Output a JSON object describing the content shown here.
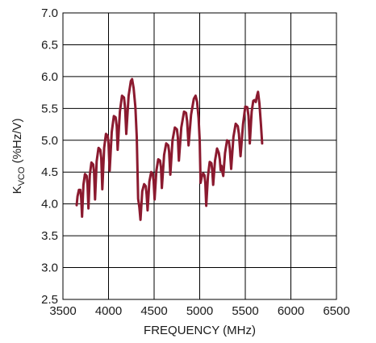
{
  "chart_data": {
    "type": "line",
    "title": "",
    "xlabel": "FREQUENCY (MHz)",
    "ylabel_main": "K",
    "ylabel_sub": "VCO",
    "ylabel_rest": " (%Hz/V)",
    "xlim": [
      3500,
      6500
    ],
    "ylim": [
      2.5,
      7.0
    ],
    "xticks": [
      3500,
      4000,
      4500,
      5000,
      5500,
      6000,
      6500
    ],
    "yticks": [
      2.5,
      3.0,
      3.5,
      4.0,
      4.5,
      5.0,
      5.5,
      6.0,
      6.5,
      7.0
    ],
    "xtick_labels": [
      "3500",
      "4000",
      "4500",
      "5000",
      "5500",
      "6000",
      "6500"
    ],
    "ytick_labels": [
      "2.5",
      "3.0",
      "3.5",
      "4.0",
      "4.5",
      "5.0",
      "5.5",
      "6.0",
      "6.5",
      "7.0"
    ],
    "grid": true,
    "line_color": "#8b1a2f",
    "series": [
      {
        "values": [
          [
            3650,
            3.98
          ],
          [
            3660,
            4.12
          ],
          [
            3675,
            4.22
          ],
          [
            3690,
            4.22
          ],
          [
            3700,
            4.1
          ],
          [
            3710,
            3.8
          ],
          [
            3725,
            4.3
          ],
          [
            3742,
            4.47
          ],
          [
            3760,
            4.44
          ],
          [
            3770,
            4.3
          ],
          [
            3780,
            3.93
          ],
          [
            3795,
            4.45
          ],
          [
            3812,
            4.65
          ],
          [
            3832,
            4.62
          ],
          [
            3842,
            4.5
          ],
          [
            3852,
            4.07
          ],
          [
            3870,
            4.67
          ],
          [
            3890,
            4.88
          ],
          [
            3910,
            4.85
          ],
          [
            3920,
            4.72
          ],
          [
            3932,
            4.23
          ],
          [
            3952,
            4.88
          ],
          [
            3972,
            5.1
          ],
          [
            3990,
            5.07
          ],
          [
            4000,
            4.95
          ],
          [
            4012,
            4.52
          ],
          [
            4035,
            5.13
          ],
          [
            4058,
            5.38
          ],
          [
            4078,
            5.36
          ],
          [
            4090,
            5.22
          ],
          [
            4100,
            4.85
          ],
          [
            4125,
            5.45
          ],
          [
            4148,
            5.7
          ],
          [
            4170,
            5.67
          ],
          [
            4182,
            5.5
          ],
          [
            4195,
            5.1
          ],
          [
            4220,
            5.7
          ],
          [
            4245,
            5.93
          ],
          [
            4258,
            5.96
          ],
          [
            4275,
            5.82
          ],
          [
            4295,
            5.52
          ],
          [
            4310,
            5.05
          ],
          [
            4325,
            4.08
          ],
          [
            4338,
            3.95
          ],
          [
            4350,
            3.75
          ],
          [
            4370,
            4.2
          ],
          [
            4390,
            4.31
          ],
          [
            4408,
            4.28
          ],
          [
            4418,
            4.15
          ],
          [
            4428,
            3.9
          ],
          [
            4448,
            4.35
          ],
          [
            4468,
            4.5
          ],
          [
            4485,
            4.47
          ],
          [
            4495,
            4.36
          ],
          [
            4505,
            4.07
          ],
          [
            4525,
            4.52
          ],
          [
            4545,
            4.7
          ],
          [
            4565,
            4.68
          ],
          [
            4575,
            4.58
          ],
          [
            4585,
            4.25
          ],
          [
            4610,
            4.77
          ],
          [
            4633,
            4.95
          ],
          [
            4655,
            4.92
          ],
          [
            4665,
            4.82
          ],
          [
            4678,
            4.46
          ],
          [
            4702,
            5.0
          ],
          [
            4727,
            5.2
          ],
          [
            4750,
            5.17
          ],
          [
            4760,
            5.05
          ],
          [
            4772,
            4.68
          ],
          [
            4798,
            5.2
          ],
          [
            4828,
            5.45
          ],
          [
            4850,
            5.43
          ],
          [
            4862,
            5.3
          ],
          [
            4878,
            4.92
          ],
          [
            4905,
            5.4
          ],
          [
            4935,
            5.65
          ],
          [
            4955,
            5.7
          ],
          [
            4972,
            5.6
          ],
          [
            4988,
            5.35
          ],
          [
            5000,
            5.0
          ],
          [
            5010,
            4.33
          ],
          [
            5022,
            4.42
          ],
          [
            5038,
            4.48
          ],
          [
            5052,
            4.45
          ],
          [
            5062,
            4.32
          ],
          [
            5072,
            3.97
          ],
          [
            5090,
            4.43
          ],
          [
            5110,
            4.66
          ],
          [
            5128,
            4.64
          ],
          [
            5138,
            4.52
          ],
          [
            5148,
            4.3
          ],
          [
            5168,
            4.68
          ],
          [
            5190,
            4.87
          ],
          [
            5210,
            4.8
          ],
          [
            5220,
            4.7
          ],
          [
            5230,
            4.53
          ],
          [
            5238,
            4.6
          ],
          [
            5246,
            4.52
          ],
          [
            5258,
            4.44
          ],
          [
            5278,
            4.8
          ],
          [
            5300,
            5.0
          ],
          [
            5320,
            4.98
          ],
          [
            5330,
            4.87
          ],
          [
            5345,
            4.55
          ],
          [
            5370,
            5.05
          ],
          [
            5395,
            5.26
          ],
          [
            5418,
            5.22
          ],
          [
            5430,
            5.1
          ],
          [
            5448,
            4.75
          ],
          [
            5475,
            5.25
          ],
          [
            5500,
            5.53
          ],
          [
            5522,
            5.52
          ],
          [
            5535,
            5.38
          ],
          [
            5550,
            4.95
          ],
          [
            5570,
            5.45
          ],
          [
            5588,
            5.62
          ],
          [
            5600,
            5.63
          ],
          [
            5615,
            5.6
          ],
          [
            5628,
            5.7
          ],
          [
            5640,
            5.76
          ],
          [
            5655,
            5.58
          ],
          [
            5672,
            5.25
          ],
          [
            5685,
            4.95
          ]
        ]
      }
    ]
  }
}
